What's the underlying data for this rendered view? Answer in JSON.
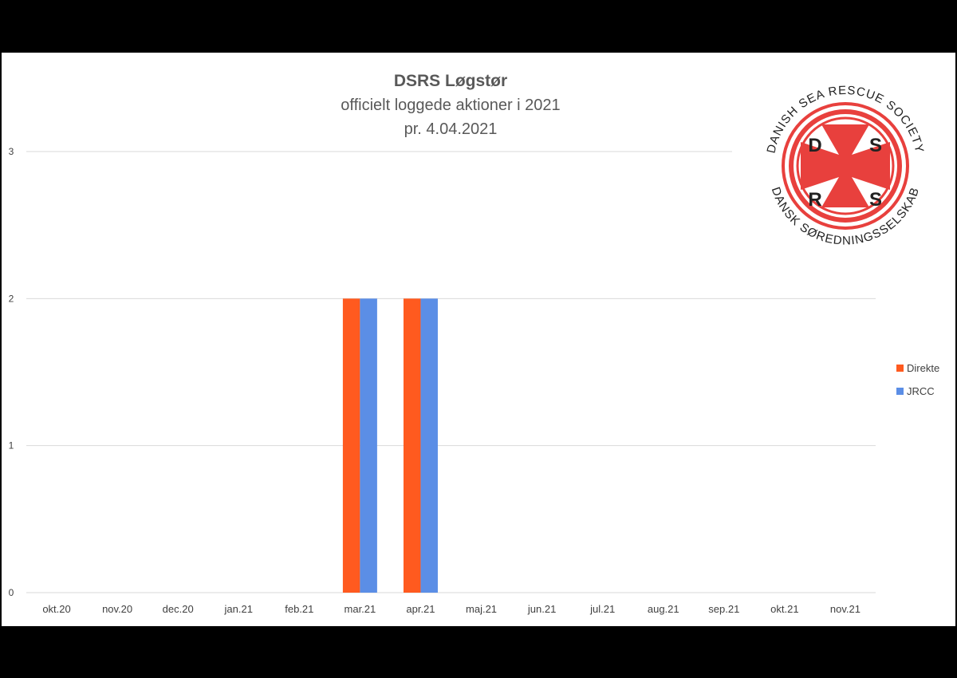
{
  "chart_data": {
    "type": "bar",
    "title": "DSRS Løgstør",
    "subtitle_lines": [
      "officielt loggede aktioner i 2021",
      "pr. 4.04.2021"
    ],
    "categories": [
      "okt.20",
      "nov.20",
      "dec.20",
      "jan.21",
      "feb.21",
      "mar.21",
      "apr.21",
      "maj.21",
      "jun.21",
      "jul.21",
      "aug.21",
      "sep.21",
      "okt.21",
      "nov.21"
    ],
    "series": [
      {
        "name": "Direkte",
        "color": "#ff5a1f",
        "values": [
          0,
          0,
          0,
          0,
          0,
          2,
          2,
          0,
          0,
          0,
          0,
          0,
          0,
          0
        ]
      },
      {
        "name": "JRCC",
        "color": "#5b8ee6",
        "values": [
          0,
          0,
          0,
          0,
          0,
          2,
          2,
          0,
          0,
          0,
          0,
          0,
          0,
          0
        ]
      }
    ],
    "ylim": [
      0,
      3
    ],
    "yticks": [
      0,
      1,
      2,
      3
    ],
    "grid": true,
    "legend_position": "right"
  },
  "logo": {
    "top_text": "DANISH SEA RESCUE SOCIETY",
    "bottom_text": "DANSK SØREDNINGSSELSKAB",
    "letters": [
      "D",
      "S",
      "R",
      "S"
    ],
    "color": "#e8403d"
  }
}
